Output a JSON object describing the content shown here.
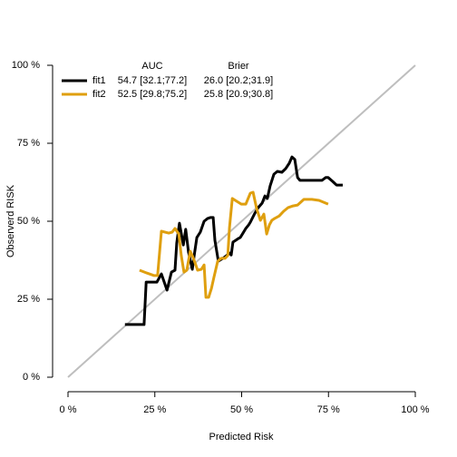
{
  "chart_data": {
    "type": "line",
    "xlabel": "Predicted Risk",
    "ylabel": "Observerd RISK",
    "xlim": [
      0,
      100
    ],
    "ylim": [
      0,
      100
    ],
    "xticks": [
      {
        "value": 0,
        "label": "0 %"
      },
      {
        "value": 25,
        "label": "25 %"
      },
      {
        "value": 50,
        "label": "50 %"
      },
      {
        "value": 75,
        "label": "75 %"
      },
      {
        "value": 100,
        "label": "100 %"
      }
    ],
    "yticks": [
      {
        "value": 0,
        "label": "0 %"
      },
      {
        "value": 25,
        "label": "25 %"
      },
      {
        "value": 50,
        "label": "50 %"
      },
      {
        "value": 75,
        "label": "75 %"
      },
      {
        "value": 100,
        "label": "100 %"
      }
    ],
    "reference_color": "#bebebe",
    "legend_columns": [
      "AUC",
      "Brier"
    ],
    "legend_position": "top-left",
    "series": [
      {
        "name": "fit1",
        "color": "#000000",
        "auc": "54.7 [32.1;77.2]",
        "brier": "26.0 [20.2;31.9]",
        "x": [
          16.4,
          21.9,
          22.5,
          25.6,
          26.9,
          28.5,
          29.8,
          30.8,
          31.3,
          32.1,
          33.2,
          33.9,
          34.7,
          35.8,
          36.3,
          37.1,
          38.1,
          39.2,
          40.2,
          41.0,
          41.8,
          42.3,
          43.3,
          44.6,
          45.7,
          46.5,
          47.0,
          47.5,
          48.3,
          49.1,
          49.6,
          50.4,
          51.2,
          52.0,
          52.5,
          53.8,
          54.8,
          55.9,
          56.7,
          57.4,
          58.2,
          59.3,
          60.3,
          61.6,
          62.7,
          63.7,
          64.5,
          65.3,
          66.1,
          66.8,
          68.9,
          71.0,
          73.1,
          74.2,
          74.9,
          76.2,
          77.3,
          79.1
        ],
        "values": [
          16.9,
          16.9,
          30.5,
          30.5,
          33.1,
          27.9,
          33.7,
          34.3,
          43.0,
          49.4,
          42.4,
          47.4,
          40.1,
          34.6,
          38.7,
          44.8,
          46.5,
          50.0,
          50.9,
          51.2,
          51.2,
          43.9,
          37.2,
          38.1,
          39.0,
          39.8,
          39.2,
          43.3,
          43.9,
          44.5,
          44.8,
          46.2,
          47.7,
          48.8,
          49.7,
          52.6,
          54.4,
          55.8,
          58.1,
          57.3,
          61.3,
          65.1,
          66.0,
          65.7,
          66.9,
          68.6,
          70.6,
          69.8,
          64.0,
          63.1,
          63.1,
          63.1,
          63.1,
          64.0,
          64.0,
          62.8,
          61.6,
          61.6
        ]
      },
      {
        "name": "fit2",
        "color": "#df9f0f",
        "auc": "52.5 [29.8;75.2]",
        "brier": "25.8 [20.9;30.8]",
        "x": [
          20.6,
          22.7,
          24.8,
          25.8,
          26.9,
          29.0,
          30.0,
          30.8,
          31.9,
          32.6,
          33.4,
          34.2,
          35.2,
          36.0,
          36.6,
          37.3,
          38.4,
          39.2,
          39.7,
          40.5,
          41.3,
          42.0,
          43.1,
          44.1,
          45.2,
          46.0,
          46.5,
          47.3,
          48.6,
          49.9,
          51.2,
          52.5,
          53.3,
          54.3,
          55.4,
          56.4,
          57.2,
          58.0,
          58.7,
          59.5,
          60.8,
          62.1,
          63.4,
          64.8,
          66.1,
          67.9,
          70.2,
          72.3,
          74.9
        ],
        "values": [
          34.3,
          33.4,
          32.6,
          32.6,
          46.8,
          46.2,
          46.5,
          47.7,
          45.9,
          39.0,
          33.7,
          34.3,
          40.4,
          38.4,
          36.6,
          34.3,
          34.6,
          36.0,
          25.6,
          25.6,
          28.5,
          32.0,
          37.2,
          38.1,
          38.1,
          39.0,
          48.0,
          57.3,
          56.4,
          55.5,
          55.5,
          59.0,
          59.3,
          54.1,
          50.3,
          52.3,
          45.9,
          48.8,
          50.3,
          50.9,
          51.7,
          53.2,
          54.4,
          54.9,
          55.2,
          57.0,
          57.0,
          56.7,
          55.5
        ]
      }
    ]
  }
}
